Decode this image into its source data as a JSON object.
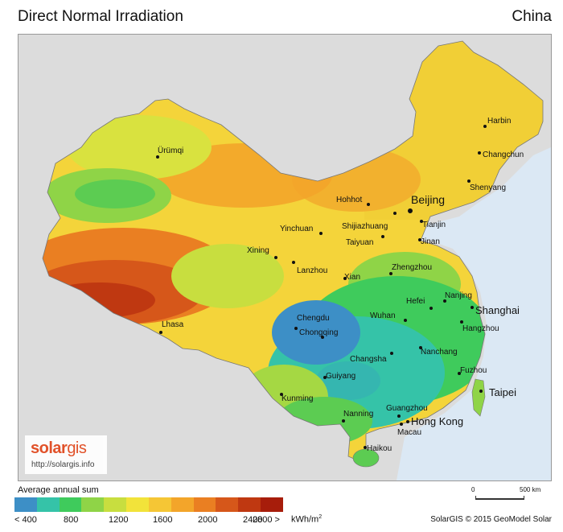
{
  "title": "Direct Normal Irradiation",
  "country": "China",
  "cities": [
    {
      "name": "Harbin"
    },
    {
      "name": "Changchun"
    },
    {
      "name": "Shenyang"
    },
    {
      "name": "Ürümqi"
    },
    {
      "name": "Hohhot"
    },
    {
      "name": "Beijing"
    },
    {
      "name": "Tianjin"
    },
    {
      "name": "Yinchuan"
    },
    {
      "name": "Shijiazhuang"
    },
    {
      "name": "Taiyuan"
    },
    {
      "name": "Jinan"
    },
    {
      "name": "Xining"
    },
    {
      "name": "Lanzhou"
    },
    {
      "name": "Zhengzhou"
    },
    {
      "name": "Xian"
    },
    {
      "name": "Hefei"
    },
    {
      "name": "Nanjing"
    },
    {
      "name": "Shanghai"
    },
    {
      "name": "Hangzhou"
    },
    {
      "name": "Wuhan"
    },
    {
      "name": "Chengdu"
    },
    {
      "name": "Chongqing"
    },
    {
      "name": "Lhasa"
    },
    {
      "name": "Changsha"
    },
    {
      "name": "Nanchang"
    },
    {
      "name": "Guiyang"
    },
    {
      "name": "Fuzhou"
    },
    {
      "name": "Taipei"
    },
    {
      "name": "Kunming"
    },
    {
      "name": "Guangzhou"
    },
    {
      "name": "Nanning"
    },
    {
      "name": "Hong Kong"
    },
    {
      "name": "Macau"
    },
    {
      "name": "Haikou"
    }
  ],
  "logo": {
    "part1": "solar",
    "part2": "gis",
    "url": "http://solargis.info"
  },
  "legend": {
    "title": "Average annual sum",
    "colors": [
      "#3d8fc6",
      "#35c3a8",
      "#3fcb5c",
      "#8fd447",
      "#c8de3f",
      "#f2e33a",
      "#f5c635",
      "#f3a52a",
      "#ea7f22",
      "#d6571a",
      "#bf3811",
      "#a71d0b"
    ],
    "labels": [
      "< 400",
      "800",
      "1200",
      "1600",
      "2000",
      "2400",
      "2800 >"
    ],
    "unit": "kWh/m",
    "unit_sup": "2"
  },
  "scale": {
    "start": "0",
    "end": "500 km"
  },
  "credit": "SolarGIS © 2015 GeoModel Solar"
}
